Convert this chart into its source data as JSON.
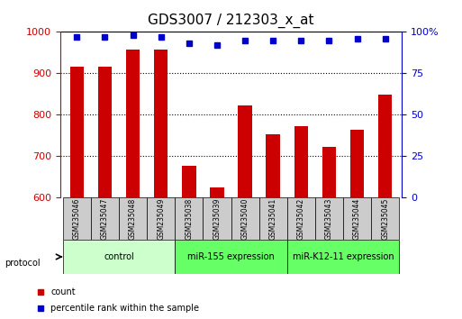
{
  "title": "GDS3007 / 212303_x_at",
  "samples": [
    "GSM235046",
    "GSM235047",
    "GSM235048",
    "GSM235049",
    "GSM235038",
    "GSM235039",
    "GSM235040",
    "GSM235041",
    "GSM235042",
    "GSM235043",
    "GSM235044",
    "GSM235045"
  ],
  "counts": [
    916,
    916,
    957,
    957,
    678,
    625,
    822,
    754,
    773,
    723,
    765,
    848
  ],
  "percentile_ranks": [
    97,
    97,
    98,
    97,
    93,
    92,
    95,
    95,
    95,
    95,
    96,
    96
  ],
  "bar_color": "#cc0000",
  "dot_color": "#0000cc",
  "ylim_left": [
    600,
    1000
  ],
  "ylim_right": [
    0,
    100
  ],
  "yticks_left": [
    600,
    700,
    800,
    900,
    1000
  ],
  "yticks_right": [
    0,
    25,
    50,
    75,
    100
  ],
  "yticklabels_right": [
    "0",
    "25",
    "50",
    "75",
    "100%"
  ],
  "groups": [
    {
      "label": "control",
      "start": 0,
      "end": 4,
      "color": "#ccffcc"
    },
    {
      "label": "miR-155 expression",
      "start": 4,
      "end": 8,
      "color": "#66ff66"
    },
    {
      "label": "miR-K12-11 expression",
      "start": 8,
      "end": 12,
      "color": "#66ff66"
    }
  ],
  "protocol_label": "protocol",
  "legend_count_label": "count",
  "legend_pct_label": "percentile rank within the sample",
  "title_fontsize": 11,
  "axis_label_color_left": "#cc0000",
  "axis_label_color_right": "#0000cc",
  "bar_width": 0.5,
  "figsize": [
    5.13,
    3.54
  ],
  "dpi": 100
}
